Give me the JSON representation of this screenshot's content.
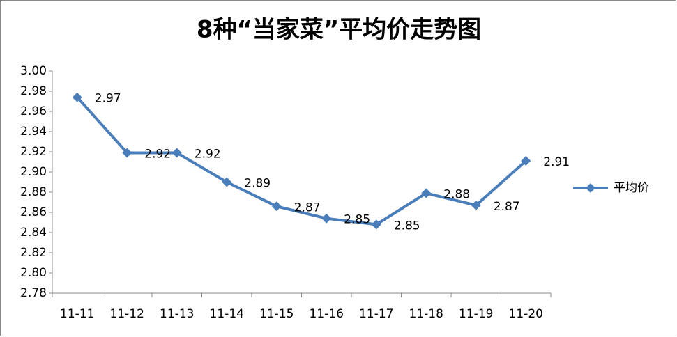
{
  "chart_data": {
    "type": "line",
    "title": "8种“当家菜”平均价走势图",
    "categories": [
      "11-11",
      "11-12",
      "11-13",
      "11-14",
      "11-15",
      "11-16",
      "11-17",
      "11-18",
      "11-19",
      "11-20"
    ],
    "series": [
      {
        "name": "平均价",
        "color": "#4a7ebb",
        "values": [
          2.974,
          2.919,
          2.919,
          2.89,
          2.866,
          2.854,
          2.848,
          2.879,
          2.867,
          2.911
        ],
        "value_labels": [
          "2.97",
          "2.92",
          "2.92",
          "2.89",
          "2.87",
          "2.85",
          "2.85",
          "2.88",
          "2.87",
          "2.91"
        ]
      }
    ],
    "ylim": [
      2.78,
      3.0
    ],
    "yticks": [
      2.78,
      {
        "value": 2.8,
        "label": "2.80"
      },
      2.82,
      2.84,
      2.86,
      2.88,
      {
        "value": 2.9,
        "label": "2.90"
      },
      2.92,
      2.94,
      2.96,
      2.98,
      {
        "value": 3.0,
        "label": "3.00"
      }
    ],
    "grid": false,
    "legend": "right"
  }
}
